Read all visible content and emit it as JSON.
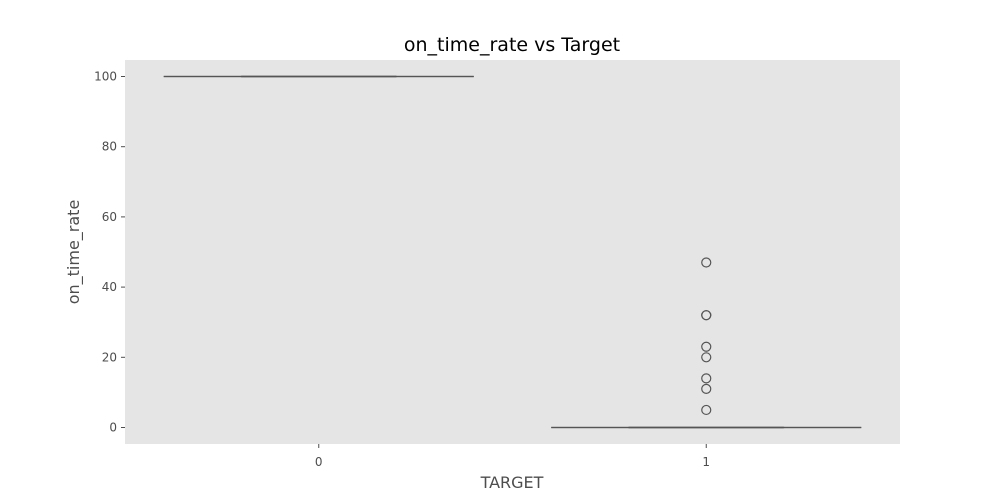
{
  "chart_data": {
    "type": "box",
    "title": "on_time_rate vs Target",
    "xlabel": "TARGET",
    "ylabel": "on_time_rate",
    "categories": [
      "0",
      "1"
    ],
    "ylim": [
      -4.7,
      104.7
    ],
    "yticks": [
      0,
      20,
      40,
      60,
      80,
      100
    ],
    "grid": false,
    "background": "#e5e5e5",
    "boxes": [
      {
        "category": "0",
        "min": 100,
        "q1": 100,
        "median": 100,
        "q3": 100,
        "max": 100,
        "outliers": []
      },
      {
        "category": "1",
        "min": 0,
        "q1": 0,
        "median": 0,
        "q3": 0,
        "max": 0,
        "outliers": [
          47,
          32,
          32,
          23,
          20,
          14,
          11,
          5
        ]
      }
    ]
  },
  "colors": {
    "plot_background": "#e5e5e5",
    "box_line": "#555555",
    "text": "#4d4d4d",
    "title": "#000000"
  }
}
